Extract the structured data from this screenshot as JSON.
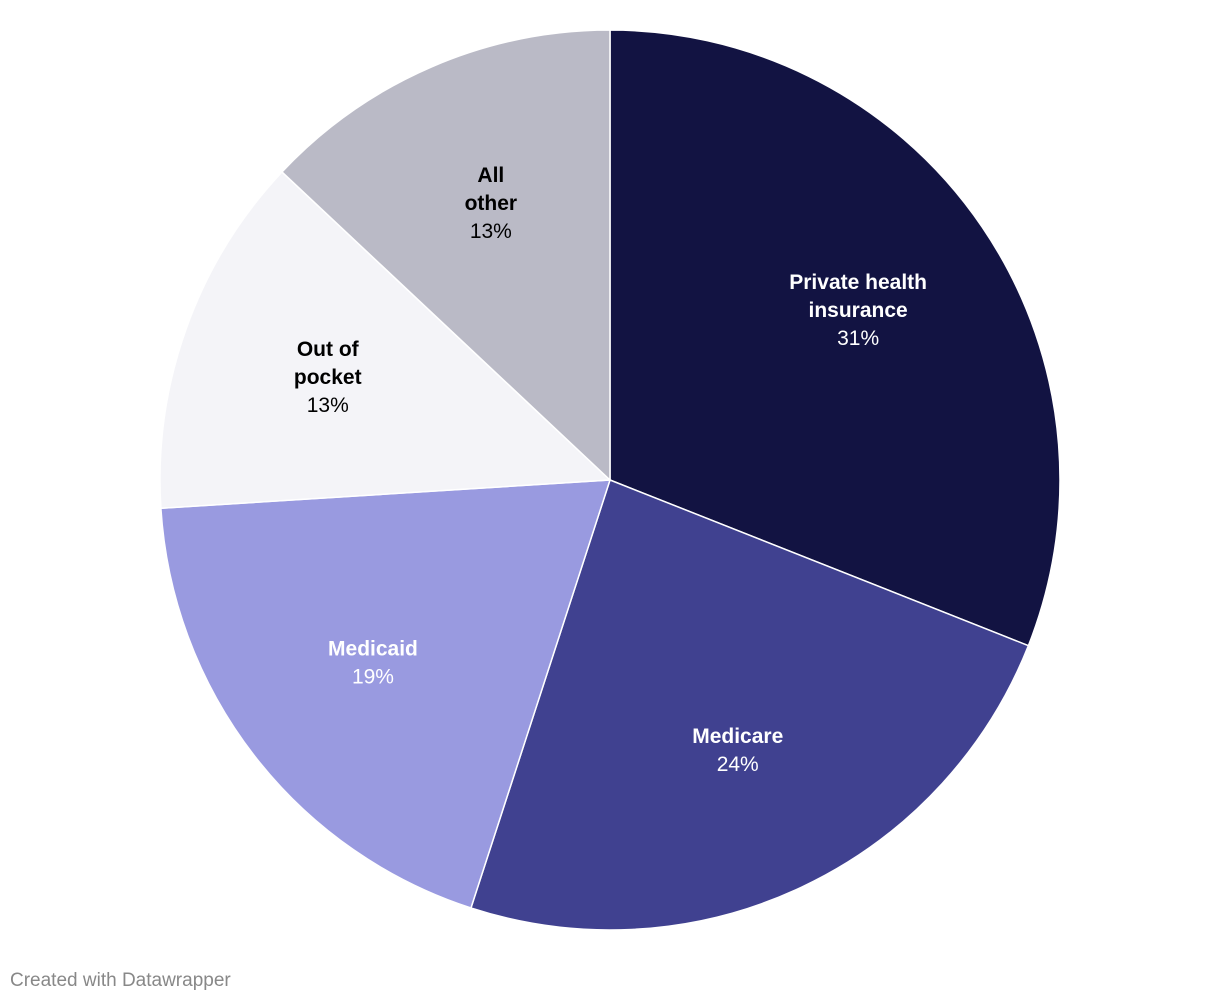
{
  "chart_data": {
    "type": "pie",
    "title": "",
    "start_angle": "12 o'clock",
    "direction": "clockwise",
    "slices": [
      {
        "label_lines": [
          "Private health",
          "insurance"
        ],
        "value": 31,
        "value_label": "31%",
        "color": "#121342",
        "label_color": "#ffffff"
      },
      {
        "label_lines": [
          "Medicare"
        ],
        "value": 24,
        "value_label": "24%",
        "color": "#404190",
        "label_color": "#ffffff"
      },
      {
        "label_lines": [
          "Medicaid"
        ],
        "value": 19,
        "value_label": "19%",
        "color": "#999ae0",
        "label_color": "#ffffff"
      },
      {
        "label_lines": [
          "Out of",
          "pocket"
        ],
        "value": 13,
        "value_label": "13%",
        "color": "#f4f4f8",
        "label_color": "#000000"
      },
      {
        "label_lines": [
          "All",
          "other"
        ],
        "value": 13,
        "value_label": "13%",
        "color": "#babac6",
        "label_color": "#000000"
      }
    ]
  },
  "footer": {
    "credit": "Created with Datawrapper"
  }
}
